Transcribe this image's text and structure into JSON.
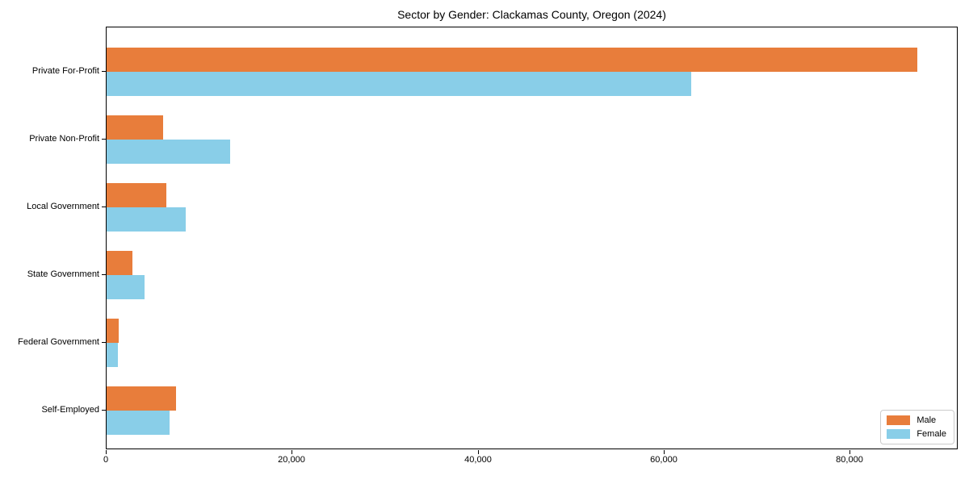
{
  "chart_data": {
    "type": "bar",
    "orientation": "horizontal",
    "title": "Sector by Gender: Clackamas County, Oregon (2024)",
    "categories": [
      "Private For-Profit",
      "Private Non-Profit",
      "Local Government",
      "State Government",
      "Federal Government",
      "Self-Employed"
    ],
    "series": [
      {
        "name": "Male",
        "color": "#e87d3b",
        "values": [
          87200,
          6100,
          6400,
          2800,
          1300,
          7500
        ]
      },
      {
        "name": "Female",
        "color": "#89cee8",
        "values": [
          62900,
          13300,
          8500,
          4100,
          1250,
          6800
        ]
      }
    ],
    "xlabel": "",
    "ylabel": "",
    "xlim": [
      0,
      91600
    ],
    "x_ticks": [
      0,
      20000,
      40000,
      60000,
      80000
    ],
    "x_tick_labels": [
      "0",
      "20,000",
      "40,000",
      "60,000",
      "80,000"
    ],
    "legend_position": "lower right",
    "grid": false
  }
}
